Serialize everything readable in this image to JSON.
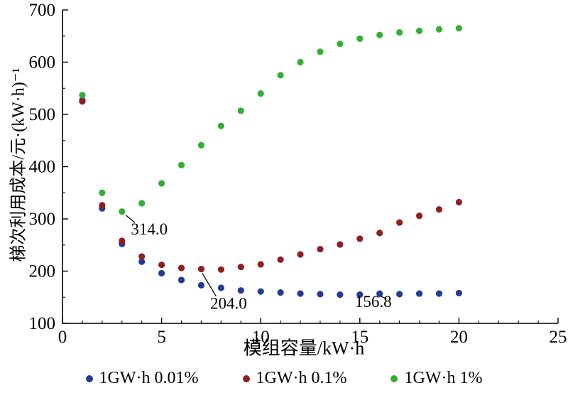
{
  "chart_data": {
    "type": "scatter",
    "title": "",
    "xlabel": "模组容量/kW·h",
    "ylabel": "梯次利用成本/元·(kW·h)⁻¹",
    "xlim": [
      0,
      25
    ],
    "ylim": [
      100,
      700
    ],
    "x_ticks": [
      0,
      5,
      10,
      15,
      20,
      25
    ],
    "y_ticks": [
      100,
      200,
      300,
      400,
      500,
      600,
      700
    ],
    "grid": false,
    "legend_position": "bottom",
    "x": [
      1,
      2,
      3,
      4,
      5,
      6,
      7,
      8,
      9,
      10,
      11,
      12,
      13,
      14,
      15,
      16,
      17,
      18,
      19,
      20
    ],
    "series": [
      {
        "name": "1GW·h 0.01%",
        "color": "#253a96",
        "values": [
          527,
          320,
          252,
          218,
          196,
          183,
          173,
          168,
          163,
          161,
          159,
          157,
          156,
          155,
          155,
          156.8,
          156,
          157,
          157,
          158
        ]
      },
      {
        "name": "1GW·h 0.1%",
        "color": "#8e2023",
        "values": [
          525,
          326,
          258,
          228,
          212,
          206,
          204,
          203,
          208,
          213,
          222,
          232,
          242,
          251,
          262,
          273,
          293,
          306,
          318,
          332
        ]
      },
      {
        "name": "1GW·h 1%",
        "color": "#35ae35",
        "values": [
          537,
          350,
          314,
          330,
          368,
          403,
          441,
          478,
          507,
          540,
          575,
          600,
          620,
          635,
          645,
          652,
          657,
          660,
          663,
          665
        ]
      }
    ],
    "annotations": [
      {
        "label": "314.0",
        "point": [
          3,
          314
        ],
        "line": [
          [
            3.2,
            307
          ],
          [
            3.65,
            293
          ]
        ],
        "text": [
          3.45,
          270
        ]
      },
      {
        "label": "204.0",
        "point": [
          7,
          204
        ],
        "line": [
          [
            7.05,
            196
          ],
          [
            7.75,
            152
          ]
        ],
        "text": [
          7.45,
          128
        ]
      },
      {
        "label": "156.8",
        "point": [
          16,
          156.8
        ],
        "line": [
          [
            16.05,
            152
          ],
          [
            16.35,
            147
          ]
        ],
        "text": [
          14.75,
          131
        ]
      }
    ]
  }
}
